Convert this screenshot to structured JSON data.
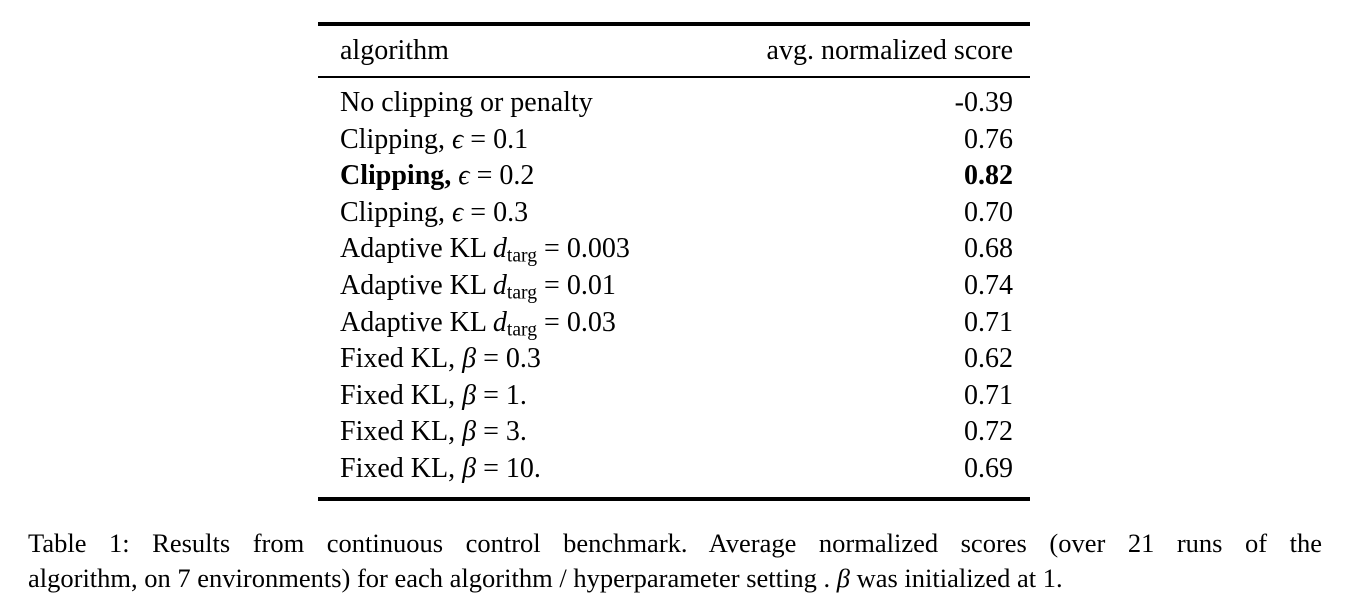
{
  "table": {
    "header": {
      "algorithm": "algorithm",
      "score": "avg. normalized score"
    },
    "rows": [
      {
        "prefix": "No clipping or penalty",
        "var": "",
        "sub": "",
        "rest": "",
        "score": "-0.39",
        "bold_label": false,
        "bold_score": false
      },
      {
        "prefix": "Clipping, ",
        "var": "ϵ",
        "sub": "",
        "rest": " = 0.1",
        "score": "0.76",
        "bold_label": false,
        "bold_score": false
      },
      {
        "prefix": "Clipping, ",
        "var": "ϵ",
        "sub": "",
        "rest": " = 0.2",
        "score": "0.82",
        "bold_label": true,
        "bold_score": true
      },
      {
        "prefix": "Clipping, ",
        "var": "ϵ",
        "sub": "",
        "rest": " = 0.3",
        "score": "0.70",
        "bold_label": false,
        "bold_score": false
      },
      {
        "prefix": "Adaptive KL ",
        "var": "d",
        "sub": "targ",
        "rest": " = 0.003",
        "score": "0.68",
        "bold_label": false,
        "bold_score": false
      },
      {
        "prefix": "Adaptive KL ",
        "var": "d",
        "sub": "targ",
        "rest": " = 0.01",
        "score": "0.74",
        "bold_label": false,
        "bold_score": false
      },
      {
        "prefix": "Adaptive KL ",
        "var": "d",
        "sub": "targ",
        "rest": " = 0.03",
        "score": "0.71",
        "bold_label": false,
        "bold_score": false
      },
      {
        "prefix": "Fixed KL, ",
        "var": "β",
        "sub": "",
        "rest": " = 0.3",
        "score": "0.62",
        "bold_label": false,
        "bold_score": false
      },
      {
        "prefix": "Fixed KL, ",
        "var": "β",
        "sub": "",
        "rest": " = 1.",
        "score": "0.71",
        "bold_label": false,
        "bold_score": false
      },
      {
        "prefix": "Fixed KL, ",
        "var": "β",
        "sub": "",
        "rest": " = 3.",
        "score": "0.72",
        "bold_label": false,
        "bold_score": false
      },
      {
        "prefix": "Fixed KL, ",
        "var": "β",
        "sub": "",
        "rest": " = 10.",
        "score": "0.69",
        "bold_label": false,
        "bold_score": false
      }
    ]
  },
  "caption": {
    "line1": "Table 1: Results from continuous control benchmark. Average normalized scores (over 21 runs of the",
    "line2_pre": "algorithm, on 7 environments) for each algorithm / hyperparameter setting . ",
    "beta": "β",
    "line2_post": " was initialized at 1."
  },
  "colors": {
    "text": "#000000",
    "background": "#ffffff",
    "rule": "#000000"
  }
}
